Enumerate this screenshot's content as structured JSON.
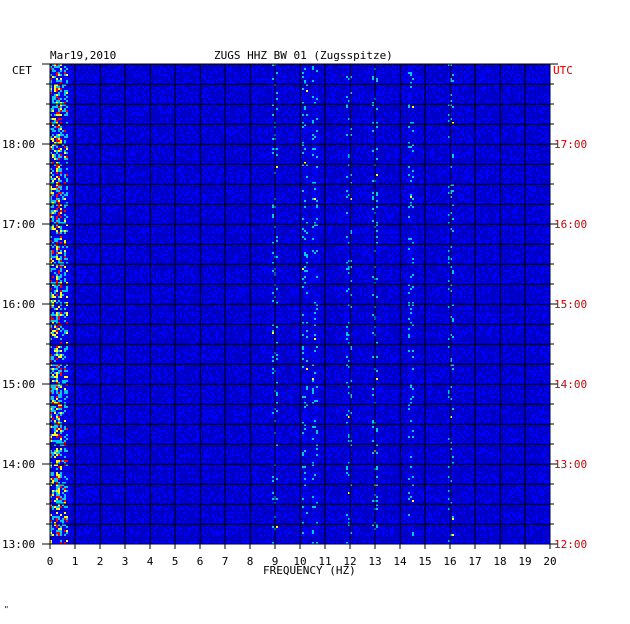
{
  "header": {
    "date": "Mar19,2010",
    "station": "ZUGS HHZ BW 01 (Zugsspitze)",
    "left_zone": "CET",
    "right_zone": "UTC"
  },
  "footer": {
    "mark": "\""
  },
  "chart_data": {
    "type": "heatmap",
    "xlabel": "FREQUENCY (HZ)",
    "xlim": [
      0,
      20
    ],
    "x_ticks": [
      "0",
      "1",
      "2",
      "3",
      "4",
      "5",
      "6",
      "7",
      "8",
      "9",
      "10",
      "11",
      "12",
      "13",
      "14",
      "15",
      "16",
      "17",
      "18",
      "19",
      "20"
    ],
    "y_range_cet": [
      "13:00",
      "19:00"
    ],
    "y_ticks_cet": [
      "18:00",
      "17:00",
      "16:00",
      "15:00",
      "14:00",
      "13:00"
    ],
    "y_ticks_utc": [
      "17:00",
      "16:00",
      "15:00",
      "14:00",
      "13:00",
      "12:00"
    ],
    "grid": true,
    "colors": {
      "background": "#0000c8",
      "low": "#0000ff",
      "mid": "#00c8ff",
      "high": "#ffff00",
      "peak": "#ff0000",
      "grid": "#000000",
      "utc_labels": "#d00000"
    }
  }
}
